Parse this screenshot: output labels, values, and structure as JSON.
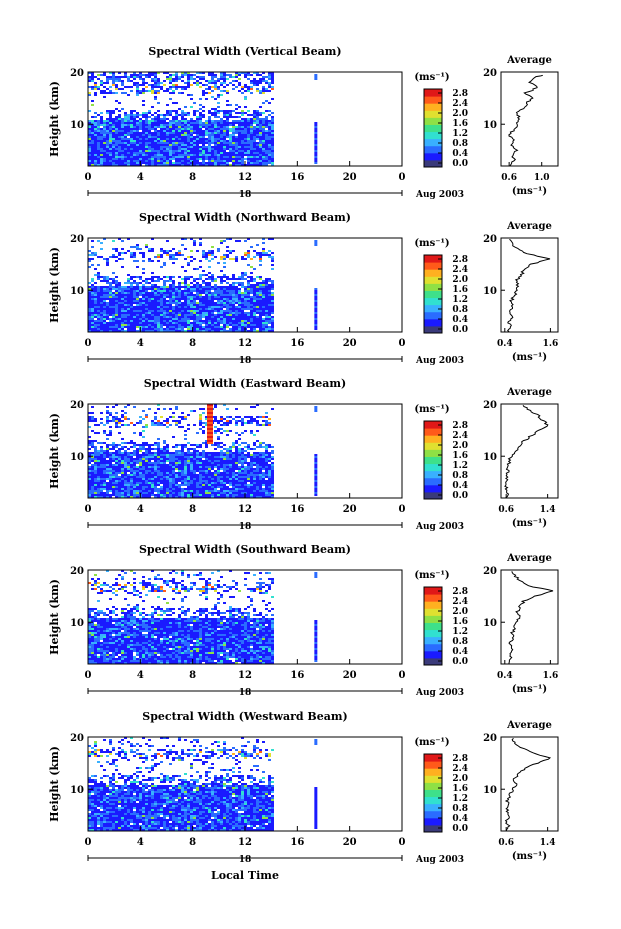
{
  "chart_data": [
    {
      "type": "heatmap",
      "title": "Spectral Width (Vertical Beam)",
      "ylabel": "Height (km)",
      "xticks": [
        "0",
        "4",
        "8",
        "12",
        "16",
        "20",
        "0"
      ],
      "xlim": [
        0,
        24
      ],
      "ylim": [
        2,
        20
      ],
      "yticks": [
        "10",
        "20"
      ],
      "date_label": "18",
      "month_label": "Aug 2003",
      "colorbar_unit": "(ms⁻¹)",
      "colorbar_ticks": [
        "2.8",
        "2.4",
        "2.0",
        "1.6",
        "1.2",
        "0.8",
        "0.4",
        "0.0"
      ],
      "avg_title": "Average",
      "avg_xticks": [
        "0.6",
        "1.0"
      ],
      "avg_xlim": [
        0.5,
        1.2
      ],
      "avg_xlabel": "(ms⁻¹)",
      "profile": [
        [
          0.62,
          2
        ],
        [
          0.66,
          3
        ],
        [
          0.64,
          4
        ],
        [
          0.7,
          5
        ],
        [
          0.62,
          6
        ],
        [
          0.65,
          7
        ],
        [
          0.6,
          8
        ],
        [
          0.66,
          9
        ],
        [
          0.7,
          10
        ],
        [
          0.74,
          11
        ],
        [
          0.68,
          12
        ],
        [
          0.78,
          13
        ],
        [
          0.82,
          14
        ],
        [
          0.88,
          15
        ],
        [
          0.8,
          16
        ],
        [
          0.95,
          17
        ],
        [
          0.85,
          18
        ],
        [
          0.9,
          19
        ],
        [
          1.05,
          19.5
        ]
      ]
    },
    {
      "type": "heatmap",
      "title": "Spectral Width (Northward Beam)",
      "ylabel": "Height (km)",
      "xticks": [
        "0",
        "4",
        "8",
        "12",
        "16",
        "20",
        "0"
      ],
      "xlim": [
        0,
        24
      ],
      "ylim": [
        2,
        20
      ],
      "yticks": [
        "10",
        "20"
      ],
      "date_label": "18",
      "month_label": "Aug 2003",
      "colorbar_unit": "(ms⁻¹)",
      "colorbar_ticks": [
        "2.8",
        "2.4",
        "2.0",
        "1.6",
        "1.2",
        "0.8",
        "0.4",
        "0.0"
      ],
      "avg_title": "Average",
      "avg_xticks": [
        "0.4",
        "1.6"
      ],
      "avg_xlim": [
        0.3,
        1.8
      ],
      "avg_xlabel": "(ms⁻¹)",
      "profile": [
        [
          0.5,
          2
        ],
        [
          0.55,
          3
        ],
        [
          0.5,
          4
        ],
        [
          0.6,
          5
        ],
        [
          0.55,
          6
        ],
        [
          0.6,
          7
        ],
        [
          0.58,
          8
        ],
        [
          0.65,
          9
        ],
        [
          0.7,
          10
        ],
        [
          0.75,
          11
        ],
        [
          0.72,
          12
        ],
        [
          0.85,
          13
        ],
        [
          0.9,
          14
        ],
        [
          1.1,
          15
        ],
        [
          1.6,
          16
        ],
        [
          1.0,
          17
        ],
        [
          0.7,
          18
        ],
        [
          0.6,
          19
        ],
        [
          0.55,
          20
        ]
      ]
    },
    {
      "type": "heatmap",
      "title": "Spectral Width (Eastward Beam)",
      "ylabel": "Height (km)",
      "xticks": [
        "0",
        "4",
        "8",
        "12",
        "16",
        "20",
        "0"
      ],
      "xlim": [
        0,
        24
      ],
      "ylim": [
        2,
        20
      ],
      "yticks": [
        "10",
        "20"
      ],
      "date_label": "18",
      "month_label": "Aug 2003",
      "colorbar_unit": "(ms⁻¹)",
      "colorbar_ticks": [
        "2.8",
        "2.4",
        "2.0",
        "1.6",
        "1.2",
        "0.8",
        "0.4",
        "0.0"
      ],
      "avg_title": "Average",
      "avg_xticks": [
        "0.6",
        "1.4"
      ],
      "avg_xlim": [
        0.5,
        1.6
      ],
      "avg_xlabel": "(ms⁻¹)",
      "profile": [
        [
          0.6,
          2
        ],
        [
          0.62,
          3
        ],
        [
          0.6,
          4
        ],
        [
          0.62,
          5
        ],
        [
          0.6,
          6
        ],
        [
          0.64,
          7
        ],
        [
          0.62,
          8
        ],
        [
          0.66,
          9
        ],
        [
          0.7,
          10
        ],
        [
          0.78,
          11
        ],
        [
          0.85,
          12
        ],
        [
          0.95,
          13
        ],
        [
          1.1,
          14
        ],
        [
          1.25,
          15
        ],
        [
          1.4,
          16
        ],
        [
          1.3,
          17
        ],
        [
          1.2,
          18
        ],
        [
          1.0,
          19
        ],
        [
          0.9,
          20
        ]
      ]
    },
    {
      "type": "heatmap",
      "title": "Spectral Width (Southward Beam)",
      "ylabel": "Height (km)",
      "xticks": [
        "0",
        "4",
        "8",
        "12",
        "16",
        "20",
        "0"
      ],
      "xlim": [
        0,
        24
      ],
      "ylim": [
        2,
        20
      ],
      "yticks": [
        "10",
        "20"
      ],
      "date_label": "18",
      "month_label": "Aug 2003",
      "colorbar_unit": "(ms⁻¹)",
      "colorbar_ticks": [
        "2.8",
        "2.4",
        "2.0",
        "1.6",
        "1.2",
        "0.8",
        "0.4",
        "0.0"
      ],
      "avg_title": "Average",
      "avg_xticks": [
        "0.4",
        "1.6"
      ],
      "avg_xlim": [
        0.3,
        1.8
      ],
      "avg_xlabel": "(ms⁻¹)",
      "profile": [
        [
          0.5,
          2
        ],
        [
          0.55,
          3
        ],
        [
          0.5,
          4
        ],
        [
          0.6,
          5
        ],
        [
          0.55,
          6
        ],
        [
          0.62,
          7
        ],
        [
          0.6,
          8
        ],
        [
          0.65,
          9
        ],
        [
          0.7,
          10
        ],
        [
          0.78,
          11
        ],
        [
          0.72,
          12
        ],
        [
          0.8,
          13
        ],
        [
          0.9,
          14
        ],
        [
          1.2,
          15
        ],
        [
          1.7,
          16
        ],
        [
          1.0,
          17
        ],
        [
          0.8,
          18
        ],
        [
          0.65,
          19
        ],
        [
          0.6,
          20
        ]
      ]
    },
    {
      "type": "heatmap",
      "title": "Spectral Width (Westward Beam)",
      "ylabel": "Height (km)",
      "xticks": [
        "0",
        "4",
        "8",
        "12",
        "16",
        "20",
        "0"
      ],
      "xlim": [
        0,
        24
      ],
      "ylim": [
        2,
        20
      ],
      "yticks": [
        "10",
        "20"
      ],
      "date_label": "18",
      "month_label": "Aug 2003",
      "colorbar_unit": "(ms⁻¹)",
      "colorbar_ticks": [
        "2.8",
        "2.4",
        "2.0",
        "1.6",
        "1.2",
        "0.8",
        "0.4",
        "0.0"
      ],
      "avg_title": "Average",
      "avg_xticks": [
        "0.6",
        "1.4"
      ],
      "avg_xlim": [
        0.5,
        1.6
      ],
      "avg_xlabel": "(ms⁻¹)",
      "profile": [
        [
          0.6,
          2
        ],
        [
          0.64,
          3
        ],
        [
          0.6,
          4
        ],
        [
          0.66,
          5
        ],
        [
          0.62,
          6
        ],
        [
          0.64,
          7
        ],
        [
          0.62,
          8
        ],
        [
          0.68,
          9
        ],
        [
          0.72,
          10
        ],
        [
          0.8,
          11
        ],
        [
          0.75,
          12
        ],
        [
          0.85,
          13
        ],
        [
          0.95,
          14
        ],
        [
          1.2,
          15
        ],
        [
          1.45,
          16
        ],
        [
          1.1,
          17
        ],
        [
          0.9,
          18
        ],
        [
          0.75,
          19
        ],
        [
          0.7,
          20
        ]
      ]
    }
  ],
  "footer": {
    "xlabel": "Local Time"
  },
  "colors": {
    "colormap": [
      "#3a3a7a",
      "#1a1aff",
      "#2a6cff",
      "#39b0ff",
      "#31e0d0",
      "#3ee08a",
      "#8fe045",
      "#e0e030",
      "#ffb020",
      "#ff5a1a",
      "#e01818"
    ],
    "axis": "#000000",
    "blue_marker": "#1a1aff"
  }
}
